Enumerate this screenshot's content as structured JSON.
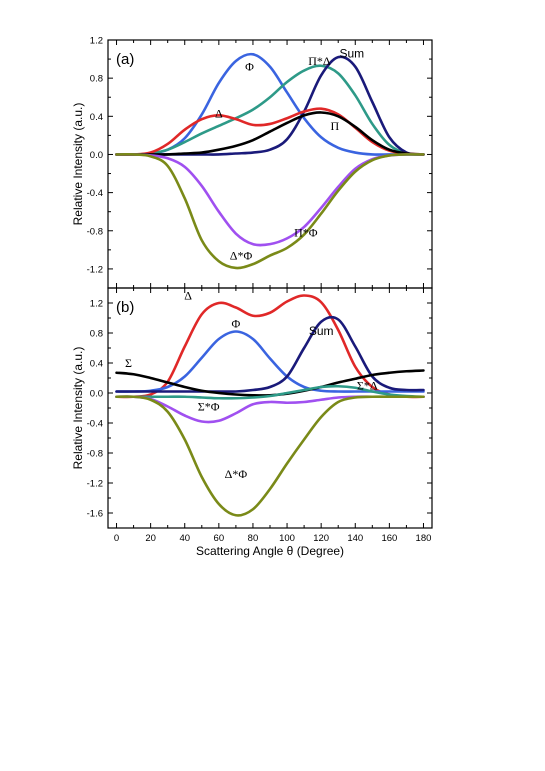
{
  "chart_data": [
    {
      "type": "line",
      "panel_label": "(a)",
      "xlim": [
        -5,
        185
      ],
      "ylim": [
        -1.4,
        1.2
      ],
      "xticks": [
        0,
        20,
        40,
        60,
        80,
        100,
        120,
        140,
        160,
        180
      ],
      "yticks": [
        -1.2,
        -0.8,
        -0.4,
        0.0,
        0.4,
        0.8,
        1.2
      ],
      "ytick_labels": [
        "-1.2",
        "-0.8",
        "-0.4",
        "0.0",
        "0.4",
        "0.8",
        "1.2"
      ],
      "ylabel": "Relative Intensity (a.u.)",
      "xlabel": "",
      "grid": false,
      "series": [
        {
          "name": "Φ",
          "color": "#3a64e0",
          "x": [
            0,
            10,
            20,
            30,
            40,
            50,
            60,
            70,
            80,
            90,
            100,
            110,
            120,
            130,
            140,
            150,
            160,
            170,
            180
          ],
          "y": [
            0,
            0,
            0.01,
            0.05,
            0.17,
            0.42,
            0.75,
            0.98,
            1.05,
            0.92,
            0.65,
            0.38,
            0.18,
            0.07,
            0.02,
            0,
            0,
            0,
            0
          ]
        },
        {
          "name": "Π*Δ",
          "color": "#2e9a88",
          "x": [
            0,
            10,
            20,
            30,
            40,
            50,
            60,
            70,
            80,
            90,
            100,
            110,
            120,
            130,
            140,
            150,
            160,
            170,
            180
          ],
          "y": [
            0,
            0,
            0.01,
            0.05,
            0.13,
            0.22,
            0.3,
            0.38,
            0.47,
            0.6,
            0.76,
            0.88,
            0.93,
            0.85,
            0.62,
            0.32,
            0.1,
            0.01,
            0
          ]
        },
        {
          "name": "Sum",
          "color": "#1a1a7a",
          "x": [
            0,
            10,
            20,
            30,
            40,
            50,
            60,
            70,
            80,
            90,
            100,
            110,
            120,
            130,
            140,
            150,
            160,
            170,
            180
          ],
          "y": [
            0,
            0,
            0,
            0,
            0,
            0,
            0,
            0.01,
            0.02,
            0.05,
            0.16,
            0.45,
            0.83,
            1.02,
            0.92,
            0.55,
            0.18,
            0.02,
            0
          ]
        },
        {
          "name": "Δ",
          "color": "#e02828",
          "x": [
            0,
            10,
            20,
            30,
            40,
            50,
            60,
            70,
            80,
            90,
            100,
            110,
            120,
            130,
            140,
            150,
            160,
            170,
            180
          ],
          "y": [
            0,
            0,
            0.02,
            0.11,
            0.26,
            0.37,
            0.41,
            0.37,
            0.31,
            0.32,
            0.38,
            0.45,
            0.48,
            0.42,
            0.28,
            0.13,
            0.04,
            0.01,
            0
          ]
        },
        {
          "name": "Π",
          "color": "#000000",
          "x": [
            0,
            10,
            20,
            30,
            40,
            50,
            60,
            70,
            80,
            90,
            100,
            110,
            120,
            130,
            140,
            150,
            160,
            170,
            180
          ],
          "y": [
            0,
            0,
            0,
            0,
            0.01,
            0.02,
            0.05,
            0.09,
            0.15,
            0.24,
            0.33,
            0.41,
            0.44,
            0.4,
            0.29,
            0.15,
            0.05,
            0.01,
            0
          ]
        },
        {
          "name": "Π*Φ",
          "color": "#a050f0",
          "x": [
            0,
            10,
            20,
            30,
            40,
            50,
            60,
            70,
            80,
            90,
            100,
            110,
            120,
            130,
            140,
            150,
            160,
            170,
            180
          ],
          "y": [
            0,
            0,
            -0.01,
            -0.04,
            -0.13,
            -0.33,
            -0.6,
            -0.83,
            -0.94,
            -0.94,
            -0.88,
            -0.76,
            -0.56,
            -0.34,
            -0.15,
            -0.05,
            -0.01,
            0,
            0
          ]
        },
        {
          "name": "Δ*Φ",
          "color": "#7a8a18",
          "x": [
            0,
            10,
            20,
            30,
            40,
            50,
            60,
            70,
            80,
            90,
            100,
            110,
            120,
            130,
            140,
            150,
            160,
            170,
            180
          ],
          "y": [
            0,
            0,
            -0.02,
            -0.12,
            -0.46,
            -0.9,
            -1.12,
            -1.19,
            -1.15,
            -1.06,
            -0.98,
            -0.84,
            -0.62,
            -0.38,
            -0.18,
            -0.06,
            -0.01,
            0,
            0
          ]
        }
      ],
      "annotations": [
        {
          "text": "Φ",
          "x": 78,
          "y": 0.92
        },
        {
          "text": "Π*Δ",
          "x": 119,
          "y": 0.98
        },
        {
          "text": "Sum",
          "x": 138,
          "y": 1.06
        },
        {
          "text": "Δ",
          "x": 60,
          "y": 0.43
        },
        {
          "text": "Π",
          "x": 128,
          "y": 0.3
        },
        {
          "text": "Π*Φ",
          "x": 111,
          "y": -0.82
        },
        {
          "text": "Δ*Φ",
          "x": 73,
          "y": -1.06
        }
      ]
    },
    {
      "type": "line",
      "panel_label": "(b)",
      "xlim": [
        -5,
        185
      ],
      "ylim": [
        -1.8,
        1.4
      ],
      "xticks": [
        0,
        20,
        40,
        60,
        80,
        100,
        120,
        140,
        160,
        180
      ],
      "xtick_labels": [
        "0",
        "20",
        "40",
        "60",
        "80",
        "100",
        "120",
        "140",
        "160",
        "180"
      ],
      "yticks": [
        -1.6,
        -1.2,
        -0.8,
        -0.4,
        0.0,
        0.4,
        0.8,
        1.2
      ],
      "ytick_labels": [
        "-1.6",
        "-1.2",
        "-0.8",
        "-0.4",
        "0.0",
        "0.4",
        "0.8",
        "1.2"
      ],
      "xlabel": "Scattering Angle θ (Degree)",
      "ylabel": "Relative Intensity (a.u.)",
      "grid": false,
      "series": [
        {
          "name": "Δ",
          "color": "#e02828",
          "x": [
            0,
            10,
            20,
            30,
            40,
            50,
            60,
            70,
            80,
            90,
            100,
            110,
            120,
            130,
            140,
            150,
            160,
            170,
            180
          ],
          "y": [
            -0.05,
            -0.05,
            -0.02,
            0.15,
            0.62,
            1.05,
            1.2,
            1.14,
            1.03,
            1.07,
            1.22,
            1.3,
            1.21,
            0.84,
            0.35,
            0.08,
            -0.02,
            -0.05,
            -0.05
          ]
        },
        {
          "name": "Φ",
          "color": "#3a64e0",
          "x": [
            0,
            10,
            20,
            30,
            40,
            50,
            60,
            70,
            80,
            90,
            100,
            110,
            120,
            130,
            140,
            150,
            160,
            170,
            180
          ],
          "y": [
            0.02,
            0.02,
            0.03,
            0.08,
            0.22,
            0.47,
            0.72,
            0.82,
            0.72,
            0.46,
            0.22,
            0.08,
            0.03,
            0.02,
            0.02,
            0.02,
            0.02,
            0.02,
            0.02
          ]
        },
        {
          "name": "Sum",
          "color": "#1a1a7a",
          "x": [
            0,
            10,
            20,
            30,
            40,
            50,
            60,
            70,
            80,
            90,
            100,
            110,
            120,
            130,
            140,
            150,
            160,
            170,
            180
          ],
          "y": [
            0.02,
            0.02,
            0.02,
            0.02,
            0.02,
            0.02,
            0.02,
            0.02,
            0.04,
            0.08,
            0.22,
            0.6,
            0.95,
            0.98,
            0.62,
            0.22,
            0.07,
            0.04,
            0.04
          ]
        },
        {
          "name": "Σ",
          "color": "#000000",
          "x": [
            0,
            10,
            20,
            30,
            40,
            50,
            60,
            70,
            80,
            90,
            100,
            110,
            120,
            130,
            140,
            150,
            160,
            170,
            180
          ],
          "y": [
            0.27,
            0.25,
            0.2,
            0.14,
            0.08,
            0.03,
            0,
            -0.02,
            -0.03,
            -0.03,
            -0.01,
            0.03,
            0.08,
            0.14,
            0.19,
            0.24,
            0.27,
            0.29,
            0.3
          ]
        },
        {
          "name": "Σ*Δ",
          "color": "#2e9a88",
          "x": [
            0,
            10,
            20,
            30,
            40,
            50,
            60,
            70,
            80,
            90,
            100,
            110,
            120,
            130,
            140,
            150,
            160,
            170,
            180
          ],
          "y": [
            -0.05,
            -0.05,
            -0.05,
            -0.05,
            -0.05,
            -0.06,
            -0.07,
            -0.07,
            -0.06,
            -0.04,
            0.0,
            0.04,
            0.08,
            0.09,
            0.07,
            0.02,
            -0.02,
            -0.04,
            -0.05
          ]
        },
        {
          "name": "Σ*Φ",
          "color": "#a050f0",
          "x": [
            0,
            10,
            20,
            30,
            40,
            50,
            60,
            70,
            80,
            90,
            100,
            110,
            120,
            130,
            140,
            150,
            160,
            170,
            180
          ],
          "y": [
            -0.05,
            -0.05,
            -0.08,
            -0.18,
            -0.3,
            -0.38,
            -0.37,
            -0.27,
            -0.15,
            -0.12,
            -0.13,
            -0.12,
            -0.09,
            -0.06,
            -0.05,
            -0.05,
            -0.05,
            -0.05,
            -0.05
          ]
        },
        {
          "name": "Δ*Φ",
          "color": "#7a8a18",
          "x": [
            0,
            10,
            20,
            30,
            40,
            50,
            60,
            70,
            80,
            90,
            100,
            110,
            120,
            130,
            140,
            150,
            160,
            170,
            180
          ],
          "y": [
            -0.05,
            -0.05,
            -0.09,
            -0.25,
            -0.62,
            -1.12,
            -1.48,
            -1.63,
            -1.55,
            -1.28,
            -0.94,
            -0.62,
            -0.32,
            -0.12,
            -0.06,
            -0.05,
            -0.05,
            -0.05,
            -0.05
          ]
        }
      ],
      "annotations": [
        {
          "text": "Δ",
          "x": 42,
          "y": 1.3
        },
        {
          "text": "Φ",
          "x": 70,
          "y": 0.93
        },
        {
          "text": "Sum",
          "x": 120,
          "y": 0.83
        },
        {
          "text": "Σ",
          "x": 7,
          "y": 0.4
        },
        {
          "text": "Σ*Δ",
          "x": 147,
          "y": 0.1
        },
        {
          "text": "Σ*Φ",
          "x": 54,
          "y": -0.18
        },
        {
          "text": "Δ*Φ",
          "x": 70,
          "y": -1.08
        }
      ]
    }
  ]
}
